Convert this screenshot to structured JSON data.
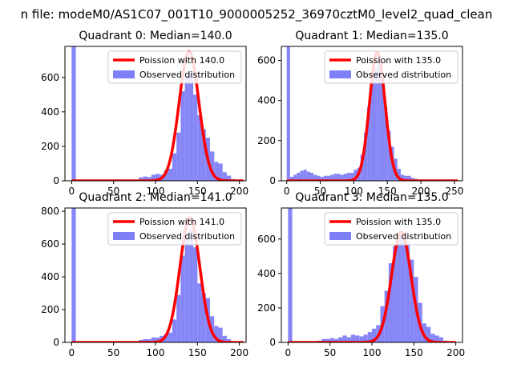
{
  "figure": {
    "suptitle": "n file: modeM0/AS1C07_001T10_9000005252_36970cztM0_level2_quad_clean",
    "colors": {
      "hist": "#7f7ff7",
      "poisson": "#ff0000",
      "axis": "#000000"
    }
  },
  "chart_data": [
    {
      "type": "bar",
      "title": "Quadrant 0: Median=140.0",
      "xlabel": "",
      "ylabel": "",
      "xlim": [
        -8,
        208
      ],
      "ylim": [
        0,
        780
      ],
      "xticks": [
        0,
        50,
        100,
        150,
        200
      ],
      "yticks": [
        0,
        200,
        400,
        600
      ],
      "bin_width": 5,
      "bins": [
        {
          "x": 0,
          "count": 780
        },
        {
          "x": 80,
          "count": 20
        },
        {
          "x": 85,
          "count": 25
        },
        {
          "x": 90,
          "count": 22
        },
        {
          "x": 95,
          "count": 35
        },
        {
          "x": 100,
          "count": 40
        },
        {
          "x": 105,
          "count": 35
        },
        {
          "x": 110,
          "count": 60
        },
        {
          "x": 115,
          "count": 70
        },
        {
          "x": 120,
          "count": 160
        },
        {
          "x": 125,
          "count": 280
        },
        {
          "x": 130,
          "count": 520
        },
        {
          "x": 135,
          "count": 610
        },
        {
          "x": 140,
          "count": 640
        },
        {
          "x": 145,
          "count": 500
        },
        {
          "x": 150,
          "count": 380
        },
        {
          "x": 155,
          "count": 300
        },
        {
          "x": 160,
          "count": 250
        },
        {
          "x": 165,
          "count": 170
        },
        {
          "x": 170,
          "count": 110
        },
        {
          "x": 175,
          "count": 100
        },
        {
          "x": 180,
          "count": 50
        },
        {
          "x": 185,
          "count": 30
        },
        {
          "x": 190,
          "count": 10
        },
        {
          "x": 195,
          "count": 5
        }
      ],
      "poisson": {
        "label": "Poission with 140.0",
        "mean": 140.0,
        "peak": 750,
        "xrange": [
          0,
          205
        ]
      },
      "legend": {
        "position": "top-right",
        "entries": [
          "Poission with 140.0",
          "Observed distribution"
        ]
      }
    },
    {
      "type": "bar",
      "title": "Quadrant 1: Median=135.0",
      "xlabel": "",
      "ylabel": "",
      "xlim": [
        -8,
        262
      ],
      "ylim": [
        0,
        670
      ],
      "xticks": [
        0,
        50,
        100,
        150,
        200,
        250
      ],
      "yticks": [
        0,
        200,
        400,
        600
      ],
      "bin_width": 5,
      "bins": [
        {
          "x": 0,
          "count": 670
        },
        {
          "x": 5,
          "count": 20
        },
        {
          "x": 10,
          "count": 30
        },
        {
          "x": 15,
          "count": 40
        },
        {
          "x": 20,
          "count": 50
        },
        {
          "x": 25,
          "count": 55
        },
        {
          "x": 30,
          "count": 45
        },
        {
          "x": 35,
          "count": 40
        },
        {
          "x": 40,
          "count": 30
        },
        {
          "x": 45,
          "count": 25
        },
        {
          "x": 50,
          "count": 20
        },
        {
          "x": 55,
          "count": 25
        },
        {
          "x": 60,
          "count": 25
        },
        {
          "x": 65,
          "count": 30
        },
        {
          "x": 70,
          "count": 35
        },
        {
          "x": 75,
          "count": 35
        },
        {
          "x": 80,
          "count": 30
        },
        {
          "x": 85,
          "count": 35
        },
        {
          "x": 90,
          "count": 40
        },
        {
          "x": 95,
          "count": 40
        },
        {
          "x": 100,
          "count": 55
        },
        {
          "x": 105,
          "count": 65
        },
        {
          "x": 110,
          "count": 130
        },
        {
          "x": 115,
          "count": 240
        },
        {
          "x": 120,
          "count": 370
        },
        {
          "x": 125,
          "count": 520
        },
        {
          "x": 130,
          "count": 560
        },
        {
          "x": 135,
          "count": 610
        },
        {
          "x": 140,
          "count": 520
        },
        {
          "x": 145,
          "count": 370
        },
        {
          "x": 150,
          "count": 250
        },
        {
          "x": 155,
          "count": 170
        },
        {
          "x": 160,
          "count": 110
        },
        {
          "x": 165,
          "count": 60
        },
        {
          "x": 170,
          "count": 30
        },
        {
          "x": 175,
          "count": 25
        },
        {
          "x": 180,
          "count": 25
        },
        {
          "x": 185,
          "count": 15
        },
        {
          "x": 190,
          "count": 10
        },
        {
          "x": 195,
          "count": 5
        },
        {
          "x": 200,
          "count": 3
        }
      ],
      "poisson": {
        "label": "Poission with 135.0",
        "mean": 135.0,
        "peak": 640,
        "xrange": [
          0,
          255
        ]
      },
      "legend": {
        "position": "top-right",
        "entries": [
          "Poission with 135.0",
          "Observed distribution"
        ]
      }
    },
    {
      "type": "bar",
      "title": "Quadrant 2: Median=141.0",
      "xlabel": "",
      "ylabel": "",
      "xlim": [
        -8,
        208
      ],
      "ylim": [
        0,
        820
      ],
      "xticks": [
        0,
        50,
        100,
        150,
        200
      ],
      "yticks": [
        0,
        200,
        400,
        600,
        800
      ],
      "bin_width": 5,
      "bins": [
        {
          "x": 0,
          "count": 820
        },
        {
          "x": 80,
          "count": 15
        },
        {
          "x": 85,
          "count": 20
        },
        {
          "x": 90,
          "count": 20
        },
        {
          "x": 95,
          "count": 30
        },
        {
          "x": 100,
          "count": 30
        },
        {
          "x": 105,
          "count": 40
        },
        {
          "x": 110,
          "count": 50
        },
        {
          "x": 115,
          "count": 60
        },
        {
          "x": 120,
          "count": 140
        },
        {
          "x": 125,
          "count": 290
        },
        {
          "x": 130,
          "count": 530
        },
        {
          "x": 135,
          "count": 640
        },
        {
          "x": 140,
          "count": 690
        },
        {
          "x": 145,
          "count": 580
        },
        {
          "x": 150,
          "count": 360
        },
        {
          "x": 155,
          "count": 300
        },
        {
          "x": 160,
          "count": 270
        },
        {
          "x": 165,
          "count": 160
        },
        {
          "x": 170,
          "count": 100
        },
        {
          "x": 175,
          "count": 90
        },
        {
          "x": 180,
          "count": 40
        },
        {
          "x": 185,
          "count": 20
        },
        {
          "x": 190,
          "count": 5
        }
      ],
      "poisson": {
        "label": "Poission with 141.0",
        "mean": 141.0,
        "peak": 760,
        "xrange": [
          0,
          205
        ]
      },
      "legend": {
        "position": "top-right",
        "entries": [
          "Poission with 141.0",
          "Observed distribution"
        ]
      }
    },
    {
      "type": "bar",
      "title": "Quadrant 3: Median=135.0",
      "xlabel": "",
      "ylabel": "",
      "xlim": [
        -8,
        208
      ],
      "ylim": [
        0,
        780
      ],
      "xticks": [
        0,
        50,
        100,
        150,
        200
      ],
      "yticks": [
        0,
        200,
        400,
        600
      ],
      "bin_width": 5,
      "bins": [
        {
          "x": 0,
          "count": 780
        },
        {
          "x": 35,
          "count": 10
        },
        {
          "x": 40,
          "count": 20
        },
        {
          "x": 45,
          "count": 20
        },
        {
          "x": 50,
          "count": 25
        },
        {
          "x": 55,
          "count": 20
        },
        {
          "x": 60,
          "count": 30
        },
        {
          "x": 65,
          "count": 40
        },
        {
          "x": 70,
          "count": 30
        },
        {
          "x": 75,
          "count": 45
        },
        {
          "x": 80,
          "count": 40
        },
        {
          "x": 85,
          "count": 35
        },
        {
          "x": 90,
          "count": 45
        },
        {
          "x": 95,
          "count": 60
        },
        {
          "x": 100,
          "count": 80
        },
        {
          "x": 105,
          "count": 100
        },
        {
          "x": 110,
          "count": 210
        },
        {
          "x": 115,
          "count": 300
        },
        {
          "x": 120,
          "count": 460
        },
        {
          "x": 125,
          "count": 560
        },
        {
          "x": 130,
          "count": 620
        },
        {
          "x": 135,
          "count": 610
        },
        {
          "x": 140,
          "count": 580
        },
        {
          "x": 145,
          "count": 480
        },
        {
          "x": 150,
          "count": 380
        },
        {
          "x": 155,
          "count": 230
        },
        {
          "x": 160,
          "count": 110
        },
        {
          "x": 165,
          "count": 90
        },
        {
          "x": 170,
          "count": 50
        },
        {
          "x": 175,
          "count": 40
        },
        {
          "x": 180,
          "count": 30
        },
        {
          "x": 185,
          "count": 10
        },
        {
          "x": 190,
          "count": 5
        }
      ],
      "poisson": {
        "label": "Poission with 135.0",
        "mean": 135.0,
        "peak": 640,
        "xrange": [
          0,
          200
        ]
      },
      "legend": {
        "position": "top-right",
        "entries": [
          "Poission with 135.0",
          "Observed distribution"
        ]
      }
    }
  ]
}
